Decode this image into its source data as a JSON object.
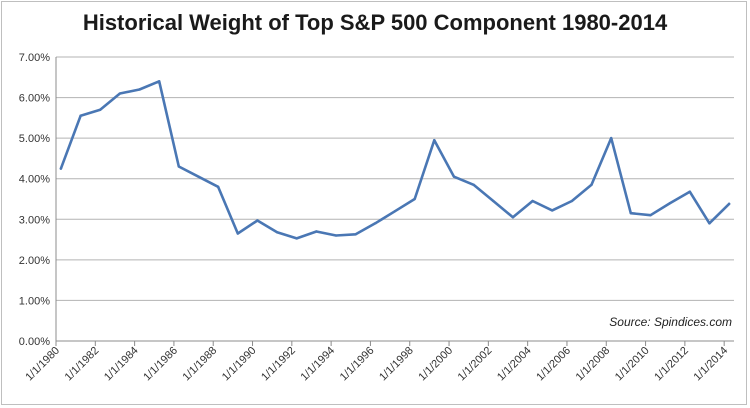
{
  "colors": {
    "line": "#4a77b4",
    "grid": "#b3b3b3",
    "axis": "#8c8c8c"
  },
  "chart_data": {
    "type": "line",
    "title": "Historical Weight of Top S&P 500 Component 1980-2014",
    "source": "Source: Spindices.com",
    "y_ticks": [
      "0.00%",
      "1.00%",
      "2.00%",
      "3.00%",
      "4.00%",
      "5.00%",
      "6.00%",
      "7.00%"
    ],
    "ylim": [
      0,
      7
    ],
    "x_ticks": [
      "1/1/1980",
      "1/1/1982",
      "1/1/1984",
      "1/1/1986",
      "1/1/1988",
      "1/1/1990",
      "1/1/1992",
      "1/1/1994",
      "1/1/1996",
      "1/1/1998",
      "1/1/2000",
      "1/1/2002",
      "1/1/2004",
      "1/1/2006",
      "1/1/2008",
      "1/1/2010",
      "1/1/2012",
      "1/1/2014"
    ],
    "xlim": [
      1980,
      2014.5
    ],
    "grid": true,
    "series": [
      {
        "x": [
          1980.25,
          1981.25,
          1982.25,
          1983.25,
          1984.25,
          1985.25,
          1986.25,
          1987.25,
          1988.25,
          1989.25,
          1990.25,
          1991.25,
          1992.25,
          1993.25,
          1994.25,
          1995.25,
          1996.25,
          1997.25,
          1998.25,
          1999.25,
          2000.25,
          2001.25,
          2002.25,
          2003.25,
          2004.25,
          2005.25,
          2006.25,
          2007.25,
          2008.25,
          2009.25,
          2010.25,
          2011.25,
          2012.25,
          2013.25,
          2014.25
        ],
        "y": [
          4.25,
          5.55,
          5.7,
          6.1,
          6.2,
          6.4,
          4.3,
          4.05,
          3.8,
          2.65,
          2.97,
          2.68,
          2.53,
          2.7,
          2.6,
          2.63,
          2.9,
          3.2,
          3.5,
          4.95,
          4.05,
          3.85,
          3.45,
          3.05,
          3.45,
          3.22,
          3.45,
          3.85,
          5.0,
          3.15,
          3.1,
          3.4,
          3.68,
          2.9,
          3.38
        ]
      }
    ]
  }
}
